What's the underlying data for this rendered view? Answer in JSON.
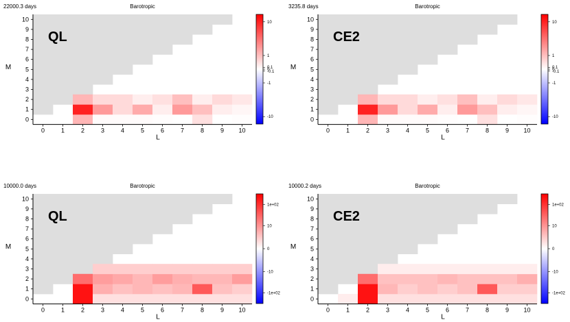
{
  "colors": {
    "negative": "#0000ff",
    "zero": "#ffffff",
    "positive": "#ff0000",
    "excluded": "#dedede"
  },
  "chart_data": [
    {
      "type": "heatmap",
      "days": "22000.3 days",
      "title": "Barotropic",
      "label": "QL",
      "xlabel": "L",
      "ylabel": "M",
      "x_ticks": [
        "0",
        "1",
        "2",
        "3",
        "4",
        "5",
        "6",
        "7",
        "8",
        "9",
        "10"
      ],
      "y_ticks": [
        "0",
        "1",
        "2",
        "3",
        "4",
        "5",
        "6",
        "7",
        "8",
        "9",
        "10"
      ],
      "colorbar_ticks": [
        "10",
        "1",
        "0.1",
        "0",
        "-0.1",
        "-1",
        "-10"
      ],
      "colorbar_scale": "symlog",
      "vmax": 15,
      "cells": [
        {
          "l": 2,
          "m": 0,
          "v": 1.2
        },
        {
          "l": 3,
          "m": 0,
          "v": 0.05
        },
        {
          "l": 4,
          "m": 0,
          "v": 0.05
        },
        {
          "l": 5,
          "m": 0,
          "v": 0.05
        },
        {
          "l": 6,
          "m": 0,
          "v": 0.02
        },
        {
          "l": 8,
          "m": 0,
          "v": 0.4
        },
        {
          "l": 10,
          "m": 0,
          "v": 0.02
        },
        {
          "l": 2,
          "m": 1,
          "v": 10
        },
        {
          "l": 3,
          "m": 1,
          "v": 2
        },
        {
          "l": 4,
          "m": 1,
          "v": 0.5
        },
        {
          "l": 5,
          "m": 1,
          "v": 1.5
        },
        {
          "l": 6,
          "m": 1,
          "v": 0.2
        },
        {
          "l": 7,
          "m": 1,
          "v": 2
        },
        {
          "l": 8,
          "m": 1,
          "v": 1
        },
        {
          "l": 9,
          "m": 1,
          "v": 0.2
        },
        {
          "l": 10,
          "m": 1,
          "v": 0.1
        },
        {
          "l": 2,
          "m": 2,
          "v": 1.2
        },
        {
          "l": 3,
          "m": 2,
          "v": 0.5
        },
        {
          "l": 4,
          "m": 2,
          "v": 0.5
        },
        {
          "l": 5,
          "m": 2,
          "v": 0.2
        },
        {
          "l": 6,
          "m": 2,
          "v": 0.4
        },
        {
          "l": 7,
          "m": 2,
          "v": 1
        },
        {
          "l": 8,
          "m": 2,
          "v": 0.2
        },
        {
          "l": 9,
          "m": 2,
          "v": 0.5
        },
        {
          "l": 10,
          "m": 2,
          "v": 0.3
        }
      ]
    },
    {
      "type": "heatmap",
      "days": "3235.8 days",
      "title": "Barotropic",
      "label": "CE2",
      "xlabel": "L",
      "ylabel": "M",
      "x_ticks": [
        "0",
        "1",
        "2",
        "3",
        "4",
        "5",
        "6",
        "7",
        "8",
        "9",
        "10"
      ],
      "y_ticks": [
        "0",
        "1",
        "2",
        "3",
        "4",
        "5",
        "6",
        "7",
        "8",
        "9",
        "10"
      ],
      "colorbar_ticks": [
        "10",
        "1",
        "0.1",
        "0",
        "-0.1",
        "-1",
        "-10"
      ],
      "colorbar_scale": "symlog",
      "vmax": 15,
      "cells": [
        {
          "l": 2,
          "m": 0,
          "v": 1.2
        },
        {
          "l": 3,
          "m": 0,
          "v": 0.05
        },
        {
          "l": 4,
          "m": 0,
          "v": 0.05
        },
        {
          "l": 5,
          "m": 0,
          "v": 0.05
        },
        {
          "l": 6,
          "m": 0,
          "v": 0.02
        },
        {
          "l": 8,
          "m": 0,
          "v": 0.4
        },
        {
          "l": 10,
          "m": 0,
          "v": 0.02
        },
        {
          "l": 2,
          "m": 1,
          "v": 10
        },
        {
          "l": 3,
          "m": 1,
          "v": 2
        },
        {
          "l": 4,
          "m": 1,
          "v": 0.5
        },
        {
          "l": 5,
          "m": 1,
          "v": 1.5
        },
        {
          "l": 6,
          "m": 1,
          "v": 0.2
        },
        {
          "l": 7,
          "m": 1,
          "v": 2
        },
        {
          "l": 8,
          "m": 1,
          "v": 1
        },
        {
          "l": 9,
          "m": 1,
          "v": 0.2
        },
        {
          "l": 10,
          "m": 1,
          "v": 0.1
        },
        {
          "l": 2,
          "m": 2,
          "v": 1.2
        },
        {
          "l": 3,
          "m": 2,
          "v": 0.5
        },
        {
          "l": 4,
          "m": 2,
          "v": 0.5
        },
        {
          "l": 5,
          "m": 2,
          "v": 0.2
        },
        {
          "l": 6,
          "m": 2,
          "v": 0.4
        },
        {
          "l": 7,
          "m": 2,
          "v": 1
        },
        {
          "l": 8,
          "m": 2,
          "v": 0.2
        },
        {
          "l": 9,
          "m": 2,
          "v": 0.5
        },
        {
          "l": 10,
          "m": 2,
          "v": 0.3
        }
      ]
    },
    {
      "type": "heatmap",
      "days": "10000.0 days",
      "title": "Barotropic",
      "label": "QL",
      "xlabel": "L",
      "ylabel": "M",
      "x_ticks": [
        "0",
        "1",
        "2",
        "3",
        "4",
        "5",
        "6",
        "7",
        "8",
        "9",
        "10"
      ],
      "y_ticks": [
        "0",
        "1",
        "2",
        "3",
        "4",
        "5",
        "6",
        "7",
        "8",
        "9",
        "10"
      ],
      "colorbar_ticks": [
        "1e+02",
        "10",
        "0",
        "-10",
        "-1e+02"
      ],
      "colorbar_scale": "symlog",
      "vmax": 300,
      "cells": [
        {
          "l": 2,
          "m": 0,
          "v": 200
        },
        {
          "l": 3,
          "m": 0,
          "v": 1
        },
        {
          "l": 4,
          "m": 0,
          "v": 1
        },
        {
          "l": 5,
          "m": 0,
          "v": 1
        },
        {
          "l": 6,
          "m": 0,
          "v": 1
        },
        {
          "l": 7,
          "m": 0,
          "v": 1
        },
        {
          "l": 8,
          "m": 0,
          "v": 1
        },
        {
          "l": 9,
          "m": 0,
          "v": 1
        },
        {
          "l": 10,
          "m": 0,
          "v": 1
        },
        {
          "l": 2,
          "m": 1,
          "v": 200
        },
        {
          "l": 3,
          "m": 1,
          "v": 5
        },
        {
          "l": 4,
          "m": 1,
          "v": 3
        },
        {
          "l": 5,
          "m": 1,
          "v": 4
        },
        {
          "l": 6,
          "m": 1,
          "v": 3
        },
        {
          "l": 7,
          "m": 1,
          "v": 4
        },
        {
          "l": 8,
          "m": 1,
          "v": 40
        },
        {
          "l": 9,
          "m": 1,
          "v": 3
        },
        {
          "l": 10,
          "m": 1,
          "v": 2
        },
        {
          "l": 2,
          "m": 2,
          "v": 25
        },
        {
          "l": 3,
          "m": 2,
          "v": 8
        },
        {
          "l": 4,
          "m": 2,
          "v": 6
        },
        {
          "l": 5,
          "m": 2,
          "v": 4
        },
        {
          "l": 6,
          "m": 2,
          "v": 8
        },
        {
          "l": 7,
          "m": 2,
          "v": 5
        },
        {
          "l": 8,
          "m": 2,
          "v": 4
        },
        {
          "l": 9,
          "m": 2,
          "v": 4
        },
        {
          "l": 10,
          "m": 2,
          "v": 8
        },
        {
          "l": 3,
          "m": 3,
          "v": 2
        },
        {
          "l": 4,
          "m": 3,
          "v": 2
        },
        {
          "l": 5,
          "m": 3,
          "v": 2
        },
        {
          "l": 6,
          "m": 3,
          "v": 2
        },
        {
          "l": 7,
          "m": 3,
          "v": 2
        },
        {
          "l": 8,
          "m": 3,
          "v": 2
        },
        {
          "l": 9,
          "m": 3,
          "v": 2
        },
        {
          "l": 10,
          "m": 3,
          "v": 2
        }
      ]
    },
    {
      "type": "heatmap",
      "days": "10000.2 days",
      "title": "Barotropic",
      "label": "CE2",
      "xlabel": "L",
      "ylabel": "M",
      "x_ticks": [
        "0",
        "1",
        "2",
        "3",
        "4",
        "5",
        "6",
        "7",
        "8",
        "9",
        "10"
      ],
      "y_ticks": [
        "0",
        "1",
        "2",
        "3",
        "4",
        "5",
        "6",
        "7",
        "8",
        "9",
        "10"
      ],
      "colorbar_ticks": [
        "1e+02",
        "10",
        "0",
        "-10",
        "-1e+02"
      ],
      "colorbar_scale": "symlog",
      "vmax": 300,
      "cells": [
        {
          "l": 1,
          "m": 0,
          "v": 0.5
        },
        {
          "l": 2,
          "m": 0,
          "v": 200
        },
        {
          "l": 3,
          "m": 0,
          "v": 1
        },
        {
          "l": 4,
          "m": 0,
          "v": 1
        },
        {
          "l": 5,
          "m": 0,
          "v": 1
        },
        {
          "l": 6,
          "m": 0,
          "v": 1
        },
        {
          "l": 7,
          "m": 0,
          "v": 1
        },
        {
          "l": 8,
          "m": 0,
          "v": 1
        },
        {
          "l": 9,
          "m": 0,
          "v": 1
        },
        {
          "l": 10,
          "m": 0,
          "v": 1
        },
        {
          "l": 2,
          "m": 1,
          "v": 200
        },
        {
          "l": 3,
          "m": 1,
          "v": 4
        },
        {
          "l": 4,
          "m": 1,
          "v": 2
        },
        {
          "l": 5,
          "m": 1,
          "v": 3
        },
        {
          "l": 6,
          "m": 1,
          "v": 2
        },
        {
          "l": 7,
          "m": 1,
          "v": 3
        },
        {
          "l": 8,
          "m": 1,
          "v": 40
        },
        {
          "l": 9,
          "m": 1,
          "v": 2
        },
        {
          "l": 10,
          "m": 1,
          "v": 2
        },
        {
          "l": 2,
          "m": 2,
          "v": 25
        },
        {
          "l": 3,
          "m": 2,
          "v": 3
        },
        {
          "l": 4,
          "m": 2,
          "v": 3
        },
        {
          "l": 5,
          "m": 2,
          "v": 3
        },
        {
          "l": 6,
          "m": 2,
          "v": 4
        },
        {
          "l": 7,
          "m": 2,
          "v": 3
        },
        {
          "l": 8,
          "m": 2,
          "v": 3
        },
        {
          "l": 9,
          "m": 2,
          "v": 3
        },
        {
          "l": 10,
          "m": 2,
          "v": 5
        },
        {
          "l": 3,
          "m": 3,
          "v": 0.5
        },
        {
          "l": 4,
          "m": 3,
          "v": 0.5
        },
        {
          "l": 5,
          "m": 3,
          "v": 0.5
        },
        {
          "l": 6,
          "m": 3,
          "v": 0.5
        },
        {
          "l": 7,
          "m": 3,
          "v": 0.5
        },
        {
          "l": 8,
          "m": 3,
          "v": 0.5
        },
        {
          "l": 9,
          "m": 3,
          "v": 0.5
        },
        {
          "l": 10,
          "m": 3,
          "v": 0.5
        }
      ]
    }
  ]
}
